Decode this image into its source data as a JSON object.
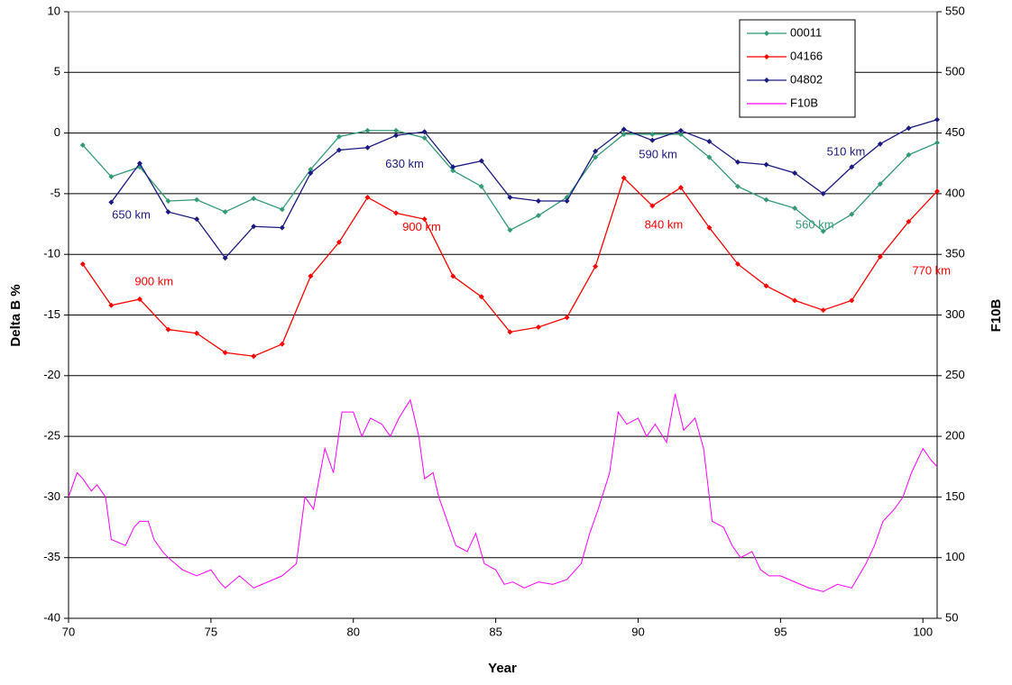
{
  "chart_data": {
    "type": "line",
    "xlabel": "Year",
    "ylabel": "Delta B %",
    "y2label": "F10B",
    "xlim": [
      70,
      100.5
    ],
    "xticks": [
      70,
      75,
      80,
      85,
      90,
      95,
      100
    ],
    "ylim": [
      -40,
      10
    ],
    "yticks": [
      -40,
      -35,
      -30,
      -25,
      -20,
      -15,
      -10,
      -5,
      0,
      5,
      10
    ],
    "y2lim": [
      50,
      550
    ],
    "y2ticks": [
      50,
      100,
      150,
      200,
      250,
      300,
      350,
      400,
      450,
      500,
      550
    ],
    "grid": true,
    "legend": "upper right",
    "series": [
      {
        "name": "00011",
        "color": "#339977",
        "x": [
          70.5,
          71.5,
          72.5,
          73.5,
          74.5,
          75.5,
          76.5,
          77.5,
          78.5,
          79.5,
          80.5,
          81.5,
          82.5,
          83.5,
          84.5,
          85.5,
          86.5,
          87.5,
          88.5,
          89.5,
          90.5,
          91.5,
          92.5,
          93.5,
          94.5,
          95.5,
          96.5,
          97.5,
          98.5,
          99.5,
          100.5
        ],
        "values": [
          -1,
          -3.6,
          -2.8,
          -5.6,
          -5.5,
          -6.5,
          -5.4,
          -6.3,
          -3,
          -0.3,
          0.2,
          0.2,
          -0.4,
          -3.1,
          -4.4,
          -8,
          -6.8,
          -5.3,
          -2,
          -0.1,
          -0.1,
          -0.1,
          -2,
          -4.4,
          -5.5,
          -6.2,
          -8.1,
          -6.7,
          -4.2,
          -1.8,
          -0.8
        ]
      },
      {
        "name": "04166",
        "color": "#ff0000",
        "x": [
          70.5,
          71.5,
          72.5,
          73.5,
          74.5,
          75.5,
          76.5,
          77.5,
          78.5,
          79.5,
          80.5,
          81.5,
          82.5,
          83.5,
          84.5,
          85.5,
          86.5,
          87.5,
          88.5,
          89.5,
          90.5,
          91.5,
          92.5,
          93.5,
          94.5,
          95.5,
          96.5,
          97.5,
          98.5,
          99.5,
          100.5
        ],
        "values": [
          -10.8,
          -14.2,
          -13.7,
          -16.2,
          -16.5,
          -18.1,
          -18.4,
          -17.4,
          -11.8,
          -9,
          -5.3,
          -6.6,
          -7.1,
          -11.8,
          -13.5,
          -16.4,
          -16,
          -15.2,
          -11,
          -3.7,
          -6,
          -4.5,
          -7.8,
          -10.8,
          -12.6,
          -13.8,
          -14.6,
          -13.8,
          -10.2,
          -7.3,
          -4.8
        ]
      },
      {
        "name": "04802",
        "color": "#1a1a80",
        "x": [
          71.5,
          72.5,
          73.5,
          74.5,
          75.5,
          76.5,
          77.5,
          78.5,
          79.5,
          80.5,
          81.5,
          82.5,
          83.5,
          84.5,
          85.5,
          86.5,
          87.5,
          88.5,
          89.5,
          90.5,
          91.5,
          92.5,
          93.5,
          94.5,
          95.5,
          96.5,
          97.5,
          98.5,
          99.5,
          100.5
        ],
        "values": [
          -5.7,
          -2.5,
          -6.5,
          -7.1,
          -10.3,
          -7.7,
          -7.8,
          -3.3,
          -1.4,
          -1.2,
          -0.2,
          0.1,
          -2.8,
          -2.3,
          -5.3,
          -5.6,
          -5.6,
          -1.5,
          0.3,
          -0.6,
          0.2,
          -0.7,
          -2.4,
          -2.6,
          -3.3,
          -5,
          -2.8,
          -0.9,
          0.4,
          1.1
        ]
      },
      {
        "name": "F10B",
        "color": "#ff00ff",
        "axis": "y2",
        "x": [
          70,
          70.3,
          70.5,
          70.8,
          71,
          71.3,
          71.5,
          72,
          72.3,
          72.5,
          72.8,
          73,
          73.3,
          73.5,
          74,
          74.5,
          75,
          75.3,
          75.5,
          76,
          76.5,
          77,
          77.5,
          78,
          78.3,
          78.6,
          79,
          79.3,
          79.6,
          80,
          80.3,
          80.6,
          81,
          81.3,
          81.6,
          82,
          82.3,
          82.5,
          82.8,
          83,
          83.3,
          83.6,
          84,
          84.3,
          84.6,
          85,
          85.3,
          85.6,
          86,
          86.5,
          87,
          87.5,
          88,
          88.3,
          88.6,
          89,
          89.3,
          89.6,
          90,
          90.3,
          90.6,
          91,
          91.3,
          91.6,
          92,
          92.3,
          92.6,
          93,
          93.3,
          93.6,
          94,
          94.3,
          94.6,
          95,
          95.5,
          96,
          96.5,
          97,
          97.5,
          98,
          98.3,
          98.6,
          99,
          99.3,
          99.6,
          100,
          100.3,
          100.5
        ],
        "values": [
          150,
          170,
          165,
          155,
          160,
          150,
          115,
          110,
          125,
          130,
          130,
          115,
          105,
          100,
          90,
          85,
          90,
          80,
          75,
          85,
          75,
          80,
          85,
          95,
          150,
          140,
          190,
          170,
          220,
          220,
          200,
          215,
          210,
          200,
          215,
          230,
          200,
          165,
          170,
          150,
          130,
          110,
          105,
          120,
          95,
          90,
          78,
          80,
          75,
          80,
          78,
          82,
          95,
          120,
          140,
          170,
          220,
          210,
          215,
          200,
          210,
          195,
          235,
          205,
          215,
          190,
          130,
          125,
          110,
          100,
          105,
          90,
          85,
          85,
          80,
          75,
          72,
          78,
          75,
          95,
          110,
          130,
          140,
          150,
          170,
          190,
          180,
          175
        ]
      }
    ],
    "annotations": [
      {
        "text": "650 km",
        "color": "#1a1a80"
      },
      {
        "text": "900 km",
        "color": "#ff0000"
      },
      {
        "text": "630 km",
        "color": "#1a1a80"
      },
      {
        "text": "900 km",
        "color": "#ff0000"
      },
      {
        "text": "590 km",
        "color": "#1a1a80"
      },
      {
        "text": "840 km",
        "color": "#ff0000"
      },
      {
        "text": "510 km",
        "color": "#1a1a80"
      },
      {
        "text": "560 km",
        "color": "#339977"
      },
      {
        "text": "770 km",
        "color": "#ff0000"
      }
    ]
  }
}
